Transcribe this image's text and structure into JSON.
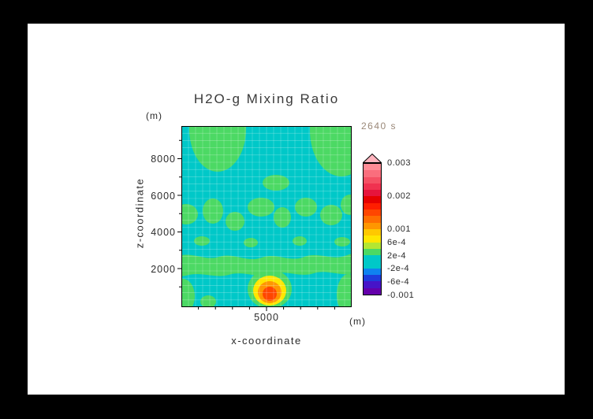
{
  "title": "H2O-g Mixing Ratio",
  "time_label": "2640 s",
  "axes": {
    "y_label": "z-coordinate",
    "y_unit": "(m)",
    "x_label": "x-coordinate",
    "x_unit": "(m)",
    "y_tick_labels": [
      "8000",
      "6000",
      "4000",
      "2000"
    ],
    "x_tick_labels": [
      "5000"
    ]
  },
  "colorbar": {
    "labels": [
      "0.003",
      "0.002",
      "0.001",
      "6e-4",
      "2e-4",
      "-2e-4",
      "-6e-4",
      "-0.001"
    ],
    "overflow_color": "#FFB4BE",
    "colors_top_to_bottom": [
      "#FF8C96",
      "#FA6E7D",
      "#F55064",
      "#F03250",
      "#E6143C",
      "#E60000",
      "#FF1E00",
      "#FF4600",
      "#FF6E00",
      "#FF9600",
      "#FFC800",
      "#FFE600",
      "#B4E632",
      "#4CD964",
      "#00C8C8",
      "#00C8C8",
      "#0F82F0",
      "#1E3CDC",
      "#4614C8",
      "#6400AA"
    ]
  },
  "palette": {
    "field": "#00C8C8",
    "green": "#4CD964",
    "yellow": "#FFE600",
    "orange": "#FF9600",
    "core": "#FF4600",
    "grid": "rgba(255,255,255,0.35)"
  },
  "chart_data": {
    "type": "heatmap",
    "title": "H2O-g Mixing Ratio",
    "xlabel": "x-coordinate",
    "ylabel": "z-coordinate",
    "axis_units": "m",
    "time_annotation": "2640 s",
    "x_range": [
      0,
      10000
    ],
    "z_range": [
      0,
      9750
    ],
    "x_tick_values": [
      5000
    ],
    "z_tick_values": [
      2000,
      4000,
      6000,
      8000
    ],
    "colorbar_tick_labels": [
      "0.003",
      "0.002",
      "0.001",
      "6e-4",
      "2e-4",
      "-2e-4",
      "-6e-4",
      "-0.001"
    ],
    "value_range": [
      -0.001,
      0.003
    ],
    "contour_interval": 0.0002,
    "background_band": [
      -0.0002,
      0.0002
    ],
    "grid": true,
    "legend_position": "right",
    "features": [
      {
        "name": "rising-plume-maximum",
        "x": 5000,
        "z": 800,
        "approx_peak_value": 0.0016
      },
      {
        "name": "low-level-moist-band",
        "x_span": [
          0,
          10000
        ],
        "z_span": [
          1900,
          3000
        ],
        "approx_value": 0.0003
      },
      {
        "name": "upper-left-moist-region",
        "x_span": [
          500,
          3700
        ],
        "z_span": [
          7000,
          9750
        ],
        "approx_value": 0.0003
      },
      {
        "name": "upper-right-moist-region",
        "x_span": [
          7400,
          10000
        ],
        "z_span": [
          6800,
          9750
        ],
        "approx_value": 0.0003
      },
      {
        "name": "mid-level-wave-blobs",
        "x_span": [
          0,
          10000
        ],
        "z_span": [
          3900,
          5700
        ],
        "approx_value": 0.0003
      },
      {
        "name": "mid-level-isolated-blob",
        "x": 5600,
        "z": 6900,
        "approx_value": 0.0003
      }
    ]
  }
}
